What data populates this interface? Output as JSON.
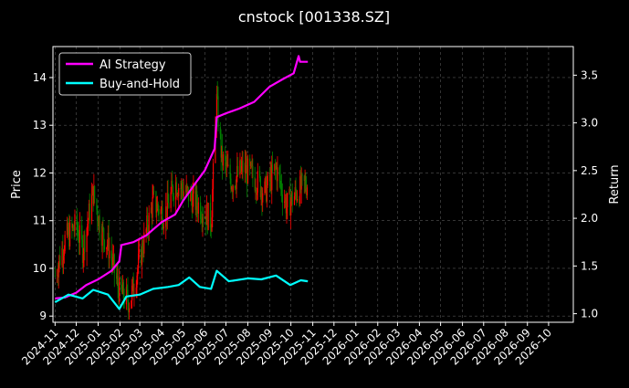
{
  "chart_data": {
    "type": "line",
    "title": "cnstock [001338.SZ]",
    "ylabel_left": "Price",
    "ylabel_right": "Return",
    "x_ticks": [
      "2024-11",
      "2024-12",
      "2025-01",
      "2025-02",
      "2025-03",
      "2025-04",
      "2025-05",
      "2025-06",
      "2025-07",
      "2025-08",
      "2025-09",
      "2025-10",
      "2025-11",
      "2025-12",
      "2026-01",
      "2026-02",
      "2026-03",
      "2026-04",
      "2026-05",
      "2026-06",
      "2026-07",
      "2026-08",
      "2026-09",
      "2026-10"
    ],
    "xlim": [
      "2024-10-29",
      "2026-11-05"
    ],
    "ylim_left": [
      8.87,
      14.65
    ],
    "ylim_right": [
      0.91,
      3.8
    ],
    "y_ticks_left": [
      "9",
      "10",
      "11",
      "12",
      "13",
      "14"
    ],
    "y_ticks_right": [
      "1.0",
      "1.5",
      "2.0",
      "2.5",
      "3.0",
      "3.5"
    ],
    "grid": true,
    "legend_position": "top-left",
    "series": [
      {
        "name": "AI Strategy",
        "axis": "right",
        "color": "#ff00ff",
        "points": [
          [
            "2024-11-01",
            1.16
          ],
          [
            "2024-11-15",
            1.17
          ],
          [
            "2024-12-01",
            1.22
          ],
          [
            "2024-12-15",
            1.3
          ],
          [
            "2025-01-01",
            1.36
          ],
          [
            "2025-01-20",
            1.45
          ],
          [
            "2025-01-31",
            1.55
          ],
          [
            "2025-02-03",
            1.72
          ],
          [
            "2025-02-20",
            1.75
          ],
          [
            "2025-03-10",
            1.82
          ],
          [
            "2025-04-01",
            1.96
          ],
          [
            "2025-04-20",
            2.04
          ],
          [
            "2025-05-01",
            2.18
          ],
          [
            "2025-05-20",
            2.38
          ],
          [
            "2025-06-01",
            2.5
          ],
          [
            "2025-06-15",
            2.73
          ],
          [
            "2025-06-18",
            3.06
          ],
          [
            "2025-07-01",
            3.1
          ],
          [
            "2025-07-20",
            3.15
          ],
          [
            "2025-08-10",
            3.22
          ],
          [
            "2025-09-01",
            3.38
          ],
          [
            "2025-09-20",
            3.46
          ],
          [
            "2025-10-05",
            3.52
          ],
          [
            "2025-10-12",
            3.7
          ],
          [
            "2025-10-14",
            3.64
          ],
          [
            "2025-10-25",
            3.64
          ]
        ]
      },
      {
        "name": "Buy-and-Hold",
        "axis": "right",
        "color": "#00ffff",
        "points": [
          [
            "2024-11-01",
            1.12
          ],
          [
            "2024-11-20",
            1.2
          ],
          [
            "2024-12-10",
            1.16
          ],
          [
            "2024-12-25",
            1.25
          ],
          [
            "2025-01-15",
            1.2
          ],
          [
            "2025-01-31",
            1.05
          ],
          [
            "2025-02-10",
            1.18
          ],
          [
            "2025-03-01",
            1.2
          ],
          [
            "2025-03-20",
            1.26
          ],
          [
            "2025-04-10",
            1.28
          ],
          [
            "2025-04-25",
            1.3
          ],
          [
            "2025-05-10",
            1.38
          ],
          [
            "2025-05-25",
            1.28
          ],
          [
            "2025-06-10",
            1.26
          ],
          [
            "2025-06-18",
            1.45
          ],
          [
            "2025-07-05",
            1.34
          ],
          [
            "2025-08-01",
            1.37
          ],
          [
            "2025-08-20",
            1.36
          ],
          [
            "2025-09-10",
            1.4
          ],
          [
            "2025-09-30",
            1.3
          ],
          [
            "2025-10-15",
            1.35
          ],
          [
            "2025-10-25",
            1.34
          ]
        ]
      }
    ],
    "candles": {
      "axis": "left",
      "up_color": "#ff0000",
      "down_color": "#008000",
      "points": [
        [
          "2024-11-01",
          9.85
        ],
        [
          "2024-11-15",
          10.6
        ],
        [
          "2024-12-01",
          10.9
        ],
        [
          "2024-12-10",
          10.4
        ],
        [
          "2024-12-25",
          11.6
        ],
        [
          "2025-01-05",
          10.8
        ],
        [
          "2025-01-15",
          10.5
        ],
        [
          "2025-01-31",
          9.5
        ],
        [
          "2025-02-15",
          9.3
        ],
        [
          "2025-03-01",
          10.2
        ],
        [
          "2025-03-20",
          11.4
        ],
        [
          "2025-04-05",
          11.1
        ],
        [
          "2025-04-20",
          11.8
        ],
        [
          "2025-05-05",
          11.6
        ],
        [
          "2025-05-25",
          11.3
        ],
        [
          "2025-06-10",
          11.0
        ],
        [
          "2025-06-18",
          13.5
        ],
        [
          "2025-06-25",
          12.3
        ],
        [
          "2025-07-10",
          11.8
        ],
        [
          "2025-07-25",
          12.1
        ],
        [
          "2025-08-10",
          11.9
        ],
        [
          "2025-08-25",
          11.6
        ],
        [
          "2025-09-10",
          12.1
        ],
        [
          "2025-09-25",
          11.3
        ],
        [
          "2025-10-10",
          11.6
        ],
        [
          "2025-10-25",
          11.8
        ]
      ]
    }
  }
}
